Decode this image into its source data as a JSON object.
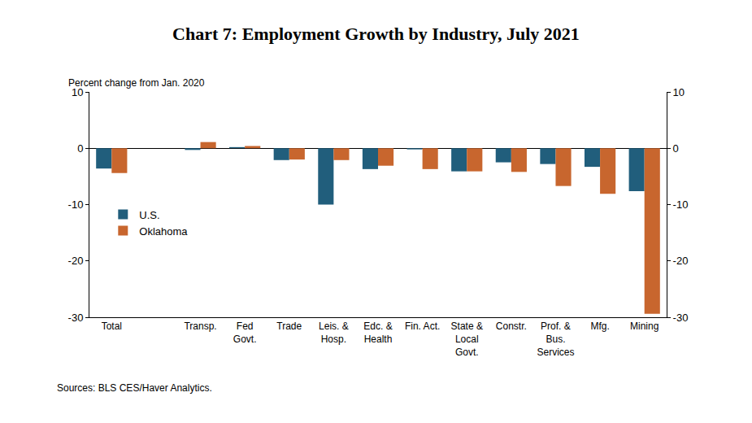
{
  "chart_data": {
    "type": "bar",
    "title": "Chart 7: Employment Growth by Industry, July 2021",
    "subtitle": "Percent change from Jan. 2020",
    "source": "Sources: BLS CES/Haver Analytics.",
    "categories": [
      "Total",
      null,
      "Transp.",
      "Fed\nGovt.",
      "Trade",
      "Leis. &\nHosp.",
      "Edc. &\nHealth",
      "Fin. Act.",
      "State &\nLocal\nGovt.",
      "Constr.",
      "Prof. &\nBus.\nServices",
      "Mfg.",
      "Mining"
    ],
    "series": [
      {
        "name": "U.S.",
        "color": "#215e7c",
        "values": [
          -3.6,
          null,
          -0.3,
          0.2,
          -2.1,
          -10.0,
          -3.7,
          -0.2,
          -4.1,
          -2.5,
          -2.8,
          -3.3,
          -7.6
        ]
      },
      {
        "name": "Oklahoma",
        "color": "#c8662e",
        "values": [
          -4.4,
          null,
          1.1,
          0.4,
          -2.0,
          -2.1,
          -3.1,
          -3.7,
          -4.1,
          -4.2,
          -6.7,
          -8.1,
          -29.4
        ]
      }
    ],
    "ylim": [
      -30,
      10
    ],
    "yticks": [
      -30,
      -20,
      -10,
      0,
      10
    ],
    "y2lim": [
      -30,
      10
    ],
    "y2ticks": [
      -30,
      -20,
      -10,
      0,
      10
    ],
    "grid": false,
    "legend": "left"
  }
}
